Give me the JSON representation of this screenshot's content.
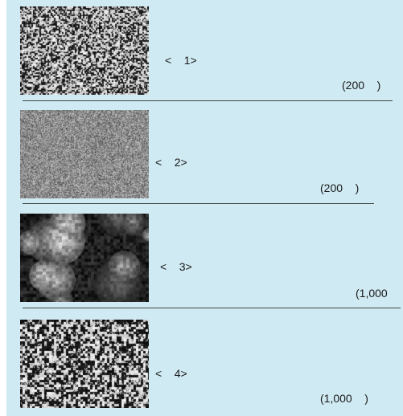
{
  "figures": [
    {
      "label": "<    1>",
      "magnification": "(200    )",
      "texture": "fine-granular"
    },
    {
      "label": "<    2>",
      "magnification": "(200    )",
      "texture": "very-fine-granular"
    },
    {
      "label": "<    3>",
      "magnification": "(1,000",
      "texture": "coarse-agglomerate"
    },
    {
      "label": "<    4>",
      "magnification": "(1,000    )",
      "texture": "medium-granular"
    }
  ],
  "colors": {
    "panel_bg": "#cfeaf2",
    "divider": "#444444"
  }
}
